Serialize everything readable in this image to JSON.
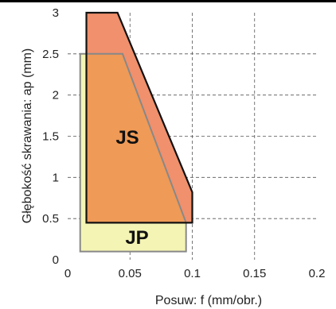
{
  "chart_data": {
    "type": "area",
    "xlabel": "Posuw: f (mm/obr.)",
    "ylabel": "Głębokość skrawania: ap (mm)",
    "xlim": [
      0,
      0.2
    ],
    "ylim": [
      0,
      3
    ],
    "xticks": [
      0,
      0.05,
      0.1,
      0.15,
      0.2
    ],
    "xtick_labels": [
      "0",
      "0.05",
      "0.1",
      "0.15",
      "0.2"
    ],
    "yticks": [
      0,
      0.5,
      1,
      1.5,
      2,
      2.5,
      3
    ],
    "ytick_labels": [
      "0",
      "0.5",
      "1",
      "1.5",
      "2",
      "2.5",
      "3"
    ],
    "grid": true,
    "regions": [
      {
        "label": "JP",
        "color": "#f4f4b4",
        "points": [
          [
            0.01,
            0.1
          ],
          [
            0.01,
            2.5
          ],
          [
            0.044,
            2.5
          ],
          [
            0.095,
            0.45
          ],
          [
            0.095,
            0.1
          ]
        ]
      },
      {
        "label": "JS",
        "color": "#f0906c",
        "overlap_color": "#ef9a56",
        "points": [
          [
            0.015,
            0.45
          ],
          [
            0.015,
            3.0
          ],
          [
            0.04,
            3.0
          ],
          [
            0.1,
            0.82
          ],
          [
            0.1,
            0.45
          ]
        ]
      }
    ]
  }
}
